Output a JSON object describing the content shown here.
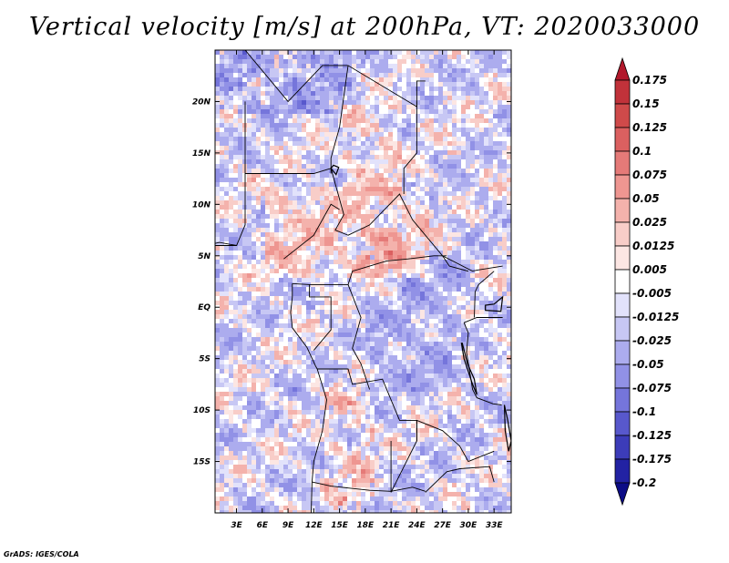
{
  "chart_data": {
    "type": "heatmap",
    "title": "Vertical velocity [m/s] at 200hPa, VT: 2020033000",
    "variable": "Vertical velocity",
    "units": "m/s",
    "level": "200hPa",
    "valid_time": "2020033000",
    "x_ticks": [
      "3E",
      "6E",
      "9E",
      "12E",
      "15E",
      "18E",
      "21E",
      "24E",
      "27E",
      "30E",
      "33E"
    ],
    "x_tick_values": [
      3,
      6,
      9,
      12,
      15,
      18,
      21,
      24,
      27,
      30,
      33
    ],
    "y_ticks": [
      "20N",
      "15N",
      "10N",
      "5N",
      "EQ",
      "5S",
      "10S",
      "15S"
    ],
    "y_tick_values": [
      20,
      15,
      10,
      5,
      0,
      -5,
      -10,
      -15
    ],
    "xlim": [
      0.5,
      35
    ],
    "ylim": [
      -20,
      25
    ],
    "colorbar_labels": [
      "0.175",
      "0.15",
      "0.125",
      "0.1",
      "0.075",
      "0.05",
      "0.025",
      "0.0125",
      "0.005",
      "-0.005",
      "-0.0125",
      "-0.025",
      "-0.05",
      "-0.075",
      "-0.1",
      "-0.125",
      "-0.175",
      "-0.2"
    ],
    "colors": [
      "#b2182b",
      "#c1323a",
      "#cf4a4a",
      "#db6060",
      "#e57a78",
      "#ee9691",
      "#f4b2ac",
      "#f8cdc8",
      "#fce6e3",
      "#ffffff",
      "#e2e2fb",
      "#c7c7f4",
      "#acacee",
      "#9191e6",
      "#7575db",
      "#5858cc",
      "#3c3cb9",
      "#2222a3",
      "#0c0c86"
    ]
  },
  "footer": {
    "credit": "GrADS: IGES/COLA"
  }
}
